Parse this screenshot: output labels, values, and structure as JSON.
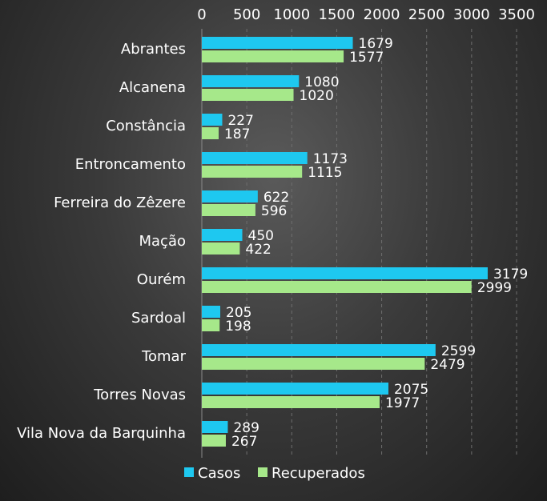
{
  "chart_data": {
    "type": "bar",
    "orientation": "horizontal",
    "categories": [
      "Abrantes",
      "Alcanena",
      "Constância",
      "Entroncamento",
      "Ferreira do Zêzere",
      "Mação",
      "Ourém",
      "Sardoal",
      "Tomar",
      "Torres Novas",
      "Vila Nova da Barquinha"
    ],
    "series": [
      {
        "name": "Casos",
        "color": "#1ec8f0",
        "values": [
          1679,
          1080,
          227,
          1173,
          622,
          450,
          3179,
          205,
          2599,
          2075,
          289
        ]
      },
      {
        "name": "Recuperados",
        "color": "#a6e88a",
        "values": [
          1577,
          1020,
          187,
          1115,
          596,
          422,
          2999,
          198,
          2479,
          1977,
          267
        ]
      }
    ],
    "xticks": [
      "0",
      "500",
      "1000",
      "1500",
      "2000",
      "2500",
      "3000",
      "3500"
    ],
    "xlim": [
      0,
      3500
    ],
    "grid": true,
    "axis_position": "top",
    "legend": "bottom"
  }
}
